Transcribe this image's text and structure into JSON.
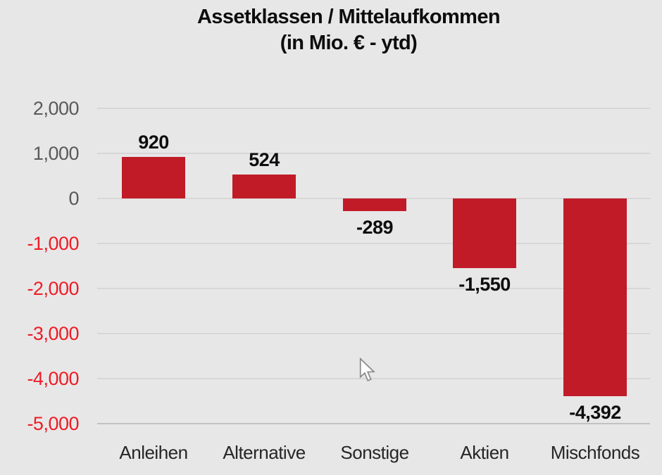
{
  "title": {
    "line1": "Assetklassen / Mittelaufkommen",
    "line2": "(in Mio. € -  ytd)"
  },
  "chart_data": {
    "type": "bar",
    "title": "Assetklassen / Mittelaufkommen",
    "subtitle": "(in Mio. € -  ytd)",
    "categories": [
      "Anleihen",
      "Alternative",
      "Sonstige",
      "Aktien",
      "Mischfonds"
    ],
    "values": [
      920,
      524,
      -289,
      -1550,
      -4392
    ],
    "value_labels": [
      "920",
      "524",
      "-289",
      "-1,550",
      "-4,392"
    ],
    "xlabel": "",
    "ylabel": "",
    "ylim": [
      -5000,
      2000
    ],
    "yticks": [
      2000,
      1000,
      0,
      -1000,
      -2000,
      -3000,
      -4000,
      -5000
    ],
    "ytick_labels": [
      "2,000",
      "1,000",
      "0",
      "-1,000",
      "-2,000",
      "-3,000",
      "-4,000",
      "-5,000"
    ],
    "grid": true,
    "legend": false,
    "bar_color": "#c11b28",
    "data_label_position": "outside-end"
  },
  "colors": {
    "background": "#e8e7e8",
    "bar": "#c11b28",
    "tick_nonnegative": "#595959",
    "tick_negative": "#ee1c25",
    "gridline": "#d8d7d8",
    "axis_line": "#c3c2c3",
    "category_text": "#262626",
    "title_text": "#0d0d0d"
  },
  "cursor": {
    "icon": "mouse-pointer-icon"
  }
}
